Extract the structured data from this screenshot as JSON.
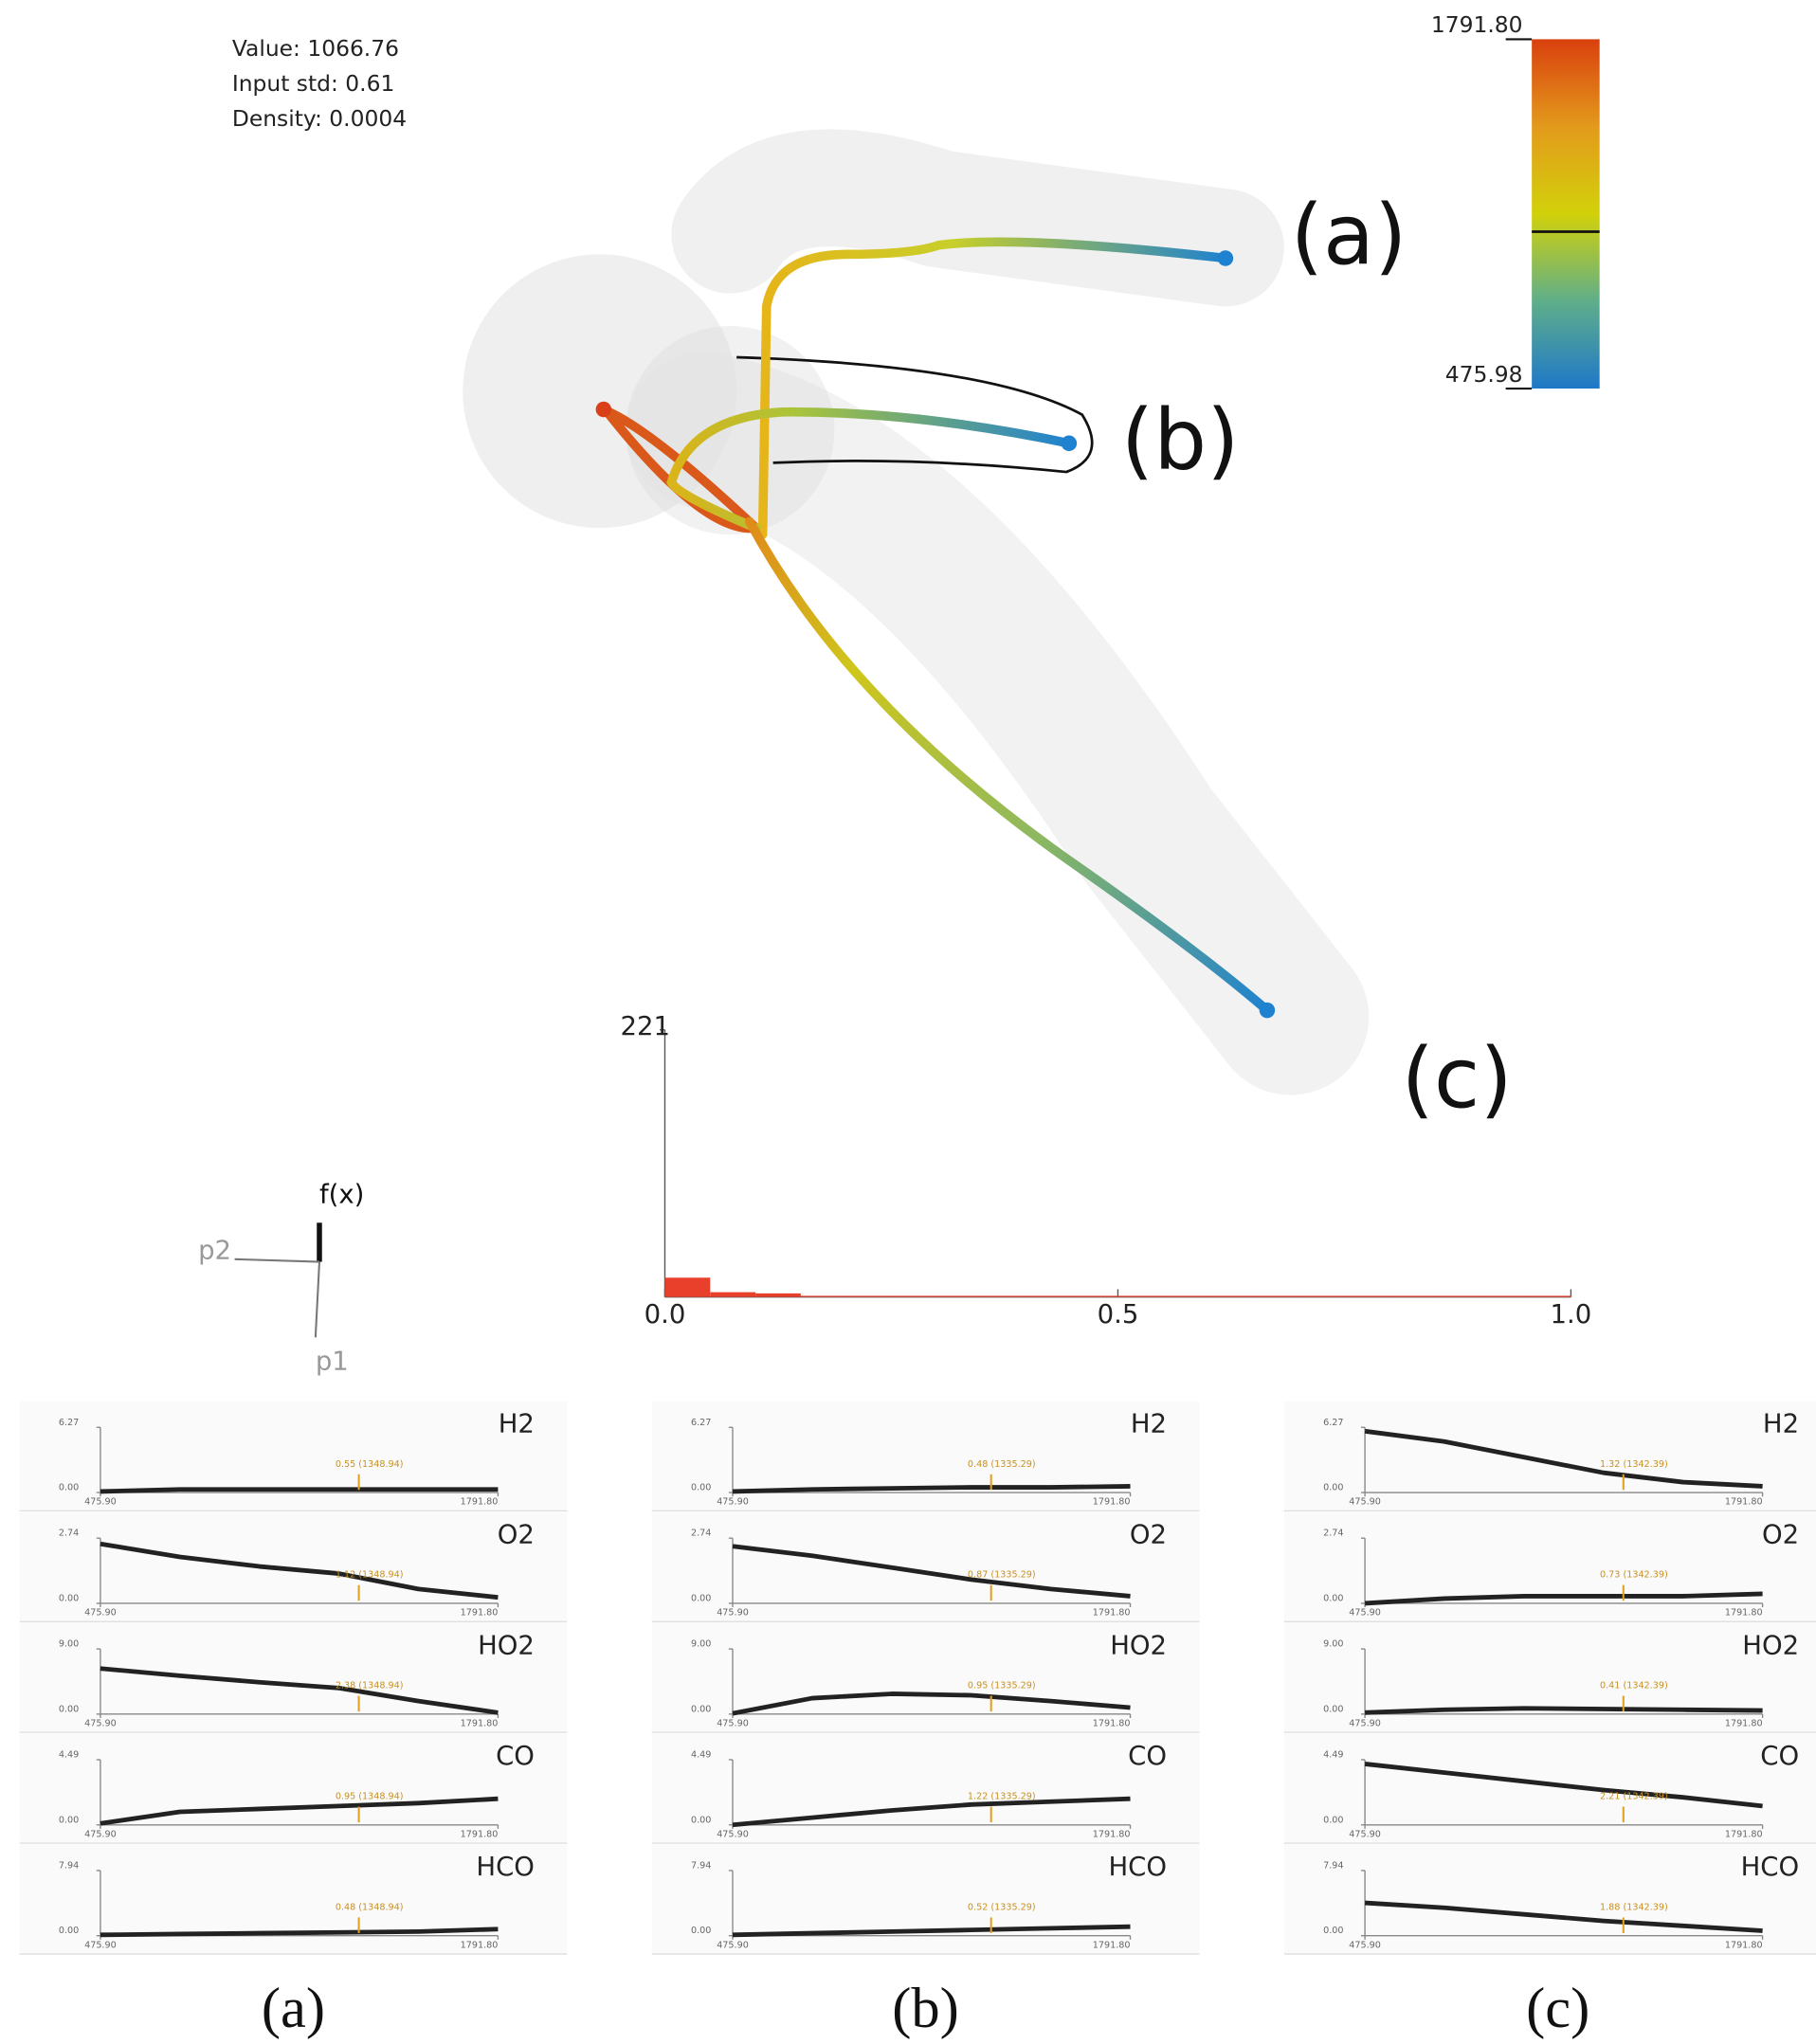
{
  "info": {
    "value": "Value: 1066.76",
    "std": "Input std: 0.61",
    "density": "Density: 0.0004"
  },
  "colorbar": {
    "lim": [
      475.98,
      1791.8
    ],
    "ticks": [
      475.98,
      {
        "value": 1791.8,
        "label": "1791.80"
      }
    ],
    "current": 1066.76
  },
  "tube_labels": [
    "(a)",
    "(b)",
    "(c)"
  ],
  "histogram": {
    "type": "histogram",
    "color": "#e8402a",
    "ylim": [
      0,
      221
    ],
    "yticks": [
      221
    ],
    "xlim": [
      0,
      1
    ],
    "xticks": [
      {
        "value": 0,
        "label": "0.0"
      },
      0.5,
      {
        "value": 1,
        "label": "1.0"
      }
    ],
    "bins": [
      0,
      0.05,
      0.1,
      0.15,
      0.2,
      0.25,
      0.3,
      0.35,
      0.4,
      0.45,
      0.5,
      0.55,
      0.6,
      0.65,
      0.7,
      0.75,
      0.8,
      0.85,
      0.9,
      0.95,
      1
    ],
    "values": [
      16,
      4,
      3,
      1,
      1,
      1,
      1,
      1,
      1,
      1,
      1,
      1,
      1,
      1,
      1,
      1,
      1,
      1,
      1,
      1
    ]
  },
  "gizmo": {
    "up": "f(x)",
    "left": "p2",
    "down": "p1"
  },
  "panels": {
    "xlim": [
      475.9,
      1791.8
    ],
    "xticks": [
      {
        "value": 475.9,
        "label": "475.90"
      },
      {
        "value": 1791.8,
        "label": "1791.80"
      }
    ],
    "species": [
      {
        "name": "H2",
        "ylim": [
          0,
          6.27
        ],
        "yticks": [
          {
            "value": 0,
            "label": "0.00"
          },
          6.27
        ]
      },
      {
        "name": "O2",
        "ylim": [
          0,
          2.74
        ],
        "yticks": [
          {
            "value": 0,
            "label": "0.00"
          },
          2.74
        ]
      },
      {
        "name": "HO2",
        "ylim": [
          0,
          9
        ],
        "yticks": [
          {
            "value": 0,
            "label": "0.00"
          },
          {
            "value": 9,
            "label": "9.00"
          }
        ]
      },
      {
        "name": "CO",
        "ylim": [
          0,
          4.49
        ],
        "yticks": [
          {
            "value": 0,
            "label": "0.00"
          },
          4.49
        ]
      },
      {
        "name": "HCO",
        "ylim": [
          0,
          7.94
        ],
        "yticks": [
          {
            "value": 0,
            "label": "0.00"
          },
          7.94
        ]
      }
    ],
    "columns": [
      {
        "caption": "(a)",
        "plots": [
          {
            "values": [
              0.1,
              0.3,
              0.3,
              0.3,
              0.3,
              0.3
            ],
            "label": "0.55 (1348.94)"
          },
          {
            "values": [
              2.5,
              1.95,
              1.55,
              1.25,
              0.6,
              0.25
            ],
            "label": "1.12 (1348.94)"
          },
          {
            "values": [
              6.3,
              5.3,
              4.4,
              3.6,
              1.8,
              0.2
            ],
            "label": "2.38 (1348.94)"
          },
          {
            "values": [
              0.1,
              0.9,
              1.1,
              1.3,
              1.5,
              1.8
            ],
            "label": "0.95 (1348.94)"
          },
          {
            "values": [
              0.1,
              0.2,
              0.3,
              0.4,
              0.5,
              0.8
            ],
            "label": "0.48 (1348.94)"
          }
        ]
      },
      {
        "caption": "(b)",
        "plots": [
          {
            "values": [
              0.1,
              0.3,
              0.4,
              0.5,
              0.5,
              0.6
            ],
            "label": "0.48 (1335.29)"
          },
          {
            "values": [
              2.4,
              2.0,
              1.5,
              1.0,
              0.6,
              0.3
            ],
            "label": "0.87 (1335.29)"
          },
          {
            "values": [
              0.1,
              2.2,
              2.8,
              2.6,
              1.8,
              0.9
            ],
            "label": "0.95 (1335.29)"
          },
          {
            "values": [
              0.0,
              0.5,
              1.0,
              1.4,
              1.6,
              1.8
            ],
            "label": "1.22 (1335.29)"
          },
          {
            "values": [
              0.1,
              0.3,
              0.5,
              0.7,
              0.9,
              1.1
            ],
            "label": "0.52 (1335.29)"
          }
        ]
      },
      {
        "caption": "(c)",
        "plots": [
          {
            "values": [
              5.9,
              4.9,
              3.4,
              1.9,
              1.0,
              0.6
            ],
            "label": "1.32 (1342.39)"
          },
          {
            "values": [
              0.0,
              0.2,
              0.3,
              0.3,
              0.3,
              0.4
            ],
            "label": "0.73 (1342.39)"
          },
          {
            "values": [
              0.2,
              0.6,
              0.8,
              0.7,
              0.6,
              0.5
            ],
            "label": "0.41 (1342.39)"
          },
          {
            "values": [
              4.2,
              3.6,
              3.0,
              2.4,
              1.9,
              1.3
            ],
            "label": "2.21 (1342.39)"
          },
          {
            "values": [
              4.0,
              3.4,
              2.6,
              1.8,
              1.2,
              0.6
            ],
            "label": "1.88 (1342.39)"
          }
        ]
      }
    ]
  }
}
